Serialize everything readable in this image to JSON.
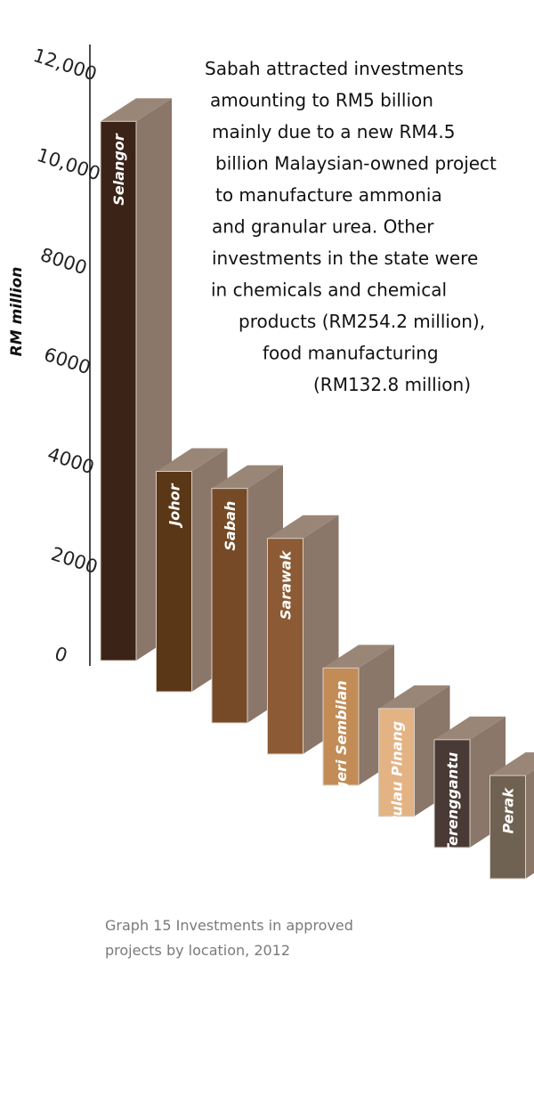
{
  "chart_data": {
    "type": "bar",
    "ylabel": "RM million",
    "yticks": [
      "12,000",
      "10,000",
      "8000",
      "6000",
      "4000",
      "2000",
      "0"
    ],
    "ylim": [
      0,
      12000
    ],
    "categories": [
      "Selangor",
      "Johor",
      "Sabah",
      "Sarawak",
      "Negeri Sembilan",
      "Pulau Pinang",
      "Terenggantu",
      "Perak"
    ],
    "values": [
      11500,
      4700,
      5000,
      4600,
      2500,
      2300,
      2300,
      2200
    ],
    "colors": [
      "#3b2317",
      "#5a3716",
      "#764a26",
      "#8c5a34",
      "#c38c56",
      "#e3b383",
      "#4a3a35",
      "#6f6252"
    ],
    "annotation": [
      "Sabah attracted investments",
      "amounting to RM5 billion",
      "mainly due to a new RM4.5",
      "billion Malaysian-owned project",
      "to manufacture ammonia",
      "and granular urea. Other",
      "investments in the state were",
      "in chemicals and chemical",
      "products (RM254.2 million),",
      "food manufacturing",
      "(RM132.8 million)"
    ]
  },
  "caption": {
    "line1": "Graph 15 Investments in approved",
    "line2": "projects by location, 2012"
  }
}
